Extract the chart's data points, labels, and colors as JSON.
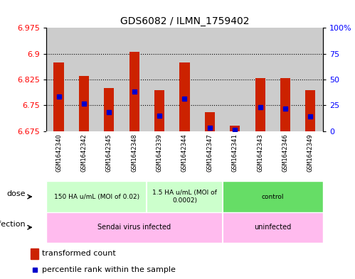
{
  "title": "GDS6082 / ILMN_1759402",
  "samples": [
    "GSM1642340",
    "GSM1642342",
    "GSM1642345",
    "GSM1642348",
    "GSM1642339",
    "GSM1642344",
    "GSM1642347",
    "GSM1642341",
    "GSM1642343",
    "GSM1642346",
    "GSM1642349"
  ],
  "bar_tops": [
    6.875,
    6.835,
    6.8,
    6.905,
    6.795,
    6.875,
    6.73,
    6.69,
    6.83,
    6.83,
    6.795
  ],
  "bar_bottom": 6.675,
  "blue_values": [
    6.775,
    6.755,
    6.73,
    6.79,
    6.72,
    6.77,
    6.685,
    6.679,
    6.745,
    6.74,
    6.718
  ],
  "ylim_left": [
    6.675,
    6.975
  ],
  "yticks_left": [
    6.675,
    6.75,
    6.825,
    6.9,
    6.975
  ],
  "yticks_right": [
    0,
    25,
    50,
    75,
    100
  ],
  "bar_color": "#cc2200",
  "blue_color": "#0000cc",
  "dose_light": "#ccffcc",
  "dose_dark": "#66cc66",
  "infection_color": "#ffbbee",
  "label_bg": "#cccccc",
  "col_bg": "#cccccc",
  "dose_groups": [
    {
      "label": "150 HA u/mL (MOI of 0.02)",
      "start": 0,
      "end": 4,
      "color": "#ccffcc"
    },
    {
      "label": "1.5 HA u/mL (MOI of\n0.0002)",
      "start": 4,
      "end": 7,
      "color": "#ccffcc"
    },
    {
      "label": "control",
      "start": 7,
      "end": 11,
      "color": "#66dd66"
    }
  ],
  "infection_groups": [
    {
      "label": "Sendai virus infected",
      "start": 0,
      "end": 7,
      "color": "#ffbbee"
    },
    {
      "label": "uninfected",
      "start": 7,
      "end": 11,
      "color": "#ffbbee"
    }
  ]
}
